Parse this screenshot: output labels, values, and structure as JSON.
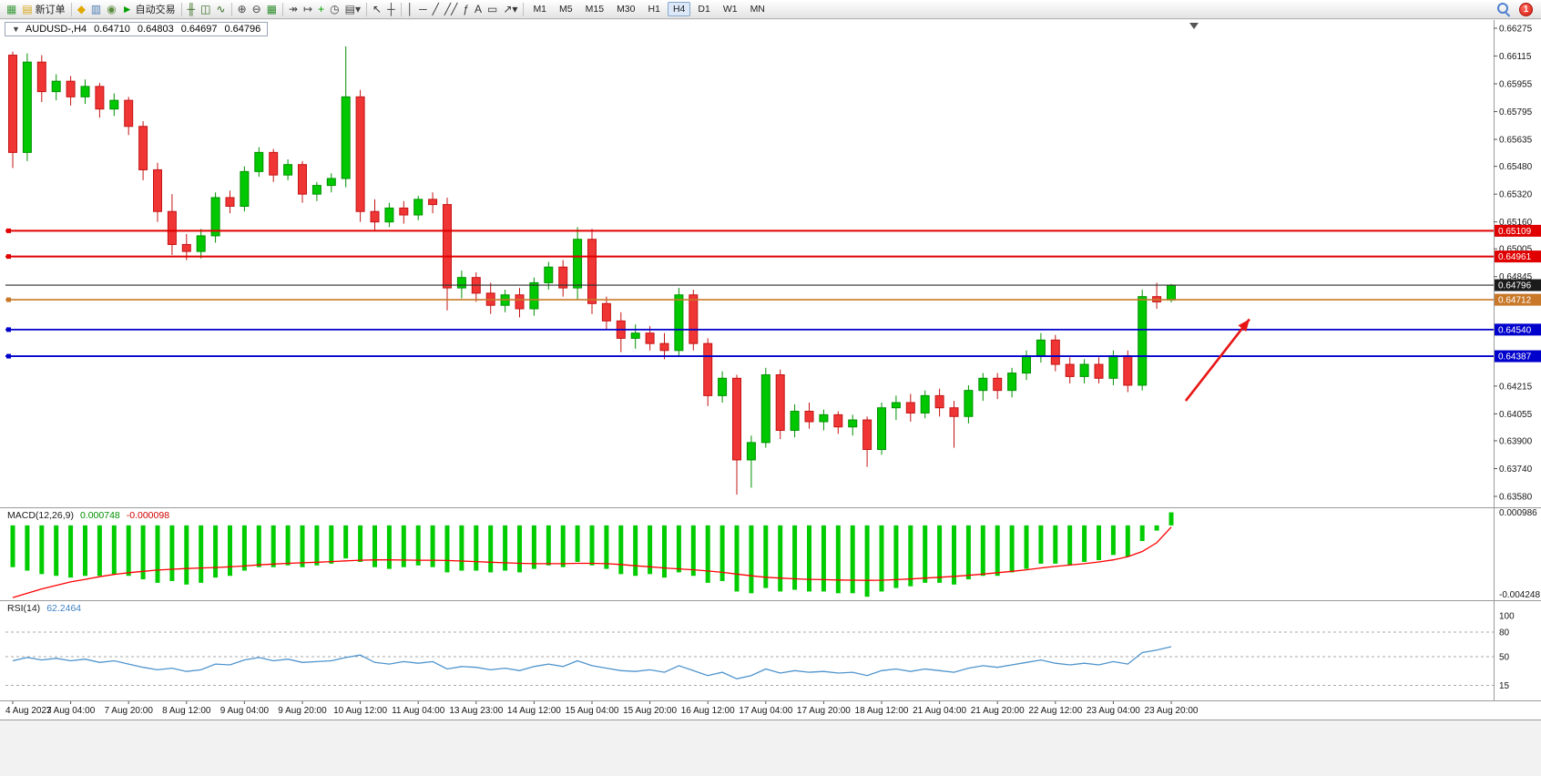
{
  "toolbar": {
    "badge_count": "1",
    "timeframes": [
      "M1",
      "M5",
      "M15",
      "M30",
      "H1",
      "H4",
      "D1",
      "W1",
      "MN"
    ],
    "active_timeframe": "H4",
    "items": [
      {
        "name": "chart-window-icon",
        "glyph": "▦",
        "color": "#3c9b3c"
      },
      {
        "name": "new-order-button",
        "glyph": "▤",
        "color": "#d8a517",
        "label": "新订单"
      },
      {
        "sep": true
      },
      {
        "name": "quotes-icon",
        "glyph": "◆",
        "color": "#e0a800"
      },
      {
        "name": "navigator-icon",
        "glyph": "▥",
        "color": "#4a7ab5"
      },
      {
        "name": "community-icon",
        "glyph": "◉",
        "color": "#5b8c3e"
      },
      {
        "name": "autotrade-button",
        "glyph": "►",
        "color": "#00a000",
        "label": "自动交易"
      },
      {
        "sep": true
      },
      {
        "name": "ohlc-bars-icon",
        "glyph": "╫",
        "color": "#33691e"
      },
      {
        "name": "candlestick-chart-icon",
        "glyph": "◫",
        "color": "#33691e"
      },
      {
        "name": "line-chart-icon",
        "glyph": "∿",
        "color": "#33691e"
      },
      {
        "sep": true
      },
      {
        "name": "zoom-in-icon",
        "glyph": "⊕",
        "color": "#444444"
      },
      {
        "name": "zoom-out-icon",
        "glyph": "⊖",
        "color": "#444444"
      },
      {
        "name": "tile-windows-icon",
        "glyph": "▦",
        "color": "#2f8f2f"
      },
      {
        "sep": true
      },
      {
        "name": "auto-scroll-icon",
        "glyph": "↠",
        "color": "#444444"
      },
      {
        "name": "chart-shift-icon",
        "glyph": "↦",
        "color": "#444444"
      },
      {
        "name": "indicators-icon",
        "glyph": "+",
        "color": "#00a000"
      },
      {
        "name": "periods-icon",
        "glyph": "◷",
        "color": "#444444"
      },
      {
        "name": "templates-icon",
        "glyph": "▤▾",
        "color": "#444444"
      },
      {
        "sep": true
      },
      {
        "name": "cursor-icon",
        "glyph": "↖",
        "color": "#333333"
      },
      {
        "name": "crosshair-icon",
        "glyph": "┼",
        "color": "#333333"
      },
      {
        "sep": true
      },
      {
        "name": "vertical-line-icon",
        "glyph": "│",
        "color": "#333333"
      },
      {
        "name": "horizontal-line-icon",
        "glyph": "─",
        "color": "#333333"
      },
      {
        "name": "trendline-icon",
        "glyph": "╱",
        "color": "#333333"
      },
      {
        "name": "channel-icon",
        "glyph": "╱╱",
        "color": "#333333"
      },
      {
        "name": "fibonacci-icon",
        "glyph": "ƒ",
        "color": "#333333"
      },
      {
        "name": "text-icon",
        "glyph": "A",
        "color": "#333333"
      },
      {
        "name": "label-icon",
        "glyph": "▭",
        "color": "#333333"
      },
      {
        "name": "arrows-icon",
        "glyph": "↗▾",
        "color": "#333333"
      },
      {
        "sep": true
      }
    ]
  },
  "chart": {
    "title": "AUDUSD-,H4",
    "menu_glyph": "▼",
    "ohlc": {
      "open": "0.64710",
      "high": "0.64803",
      "low": "0.64697",
      "close": "0.64796"
    },
    "levels": [
      {
        "name": "resistance-line-1",
        "label": "0.65109",
        "price": 0.65109,
        "color": "#e00000",
        "width": 2
      },
      {
        "name": "resistance-line-2",
        "label": "0.64961",
        "price": 0.64961,
        "color": "#e00000",
        "width": 2
      },
      {
        "name": "orange-level-line",
        "label": "0.64712",
        "price": 0.64712,
        "color": "#c87828",
        "width": 1.6
      },
      {
        "name": "support-line-1",
        "label": "0.64540",
        "price": 0.6454,
        "color": "#0000cc",
        "width": 1.8
      },
      {
        "name": "support-line-2",
        "label": "0.64387",
        "price": 0.64387,
        "color": "#0000cc",
        "width": 1.8
      }
    ],
    "current_price": {
      "label": "0.64796",
      "price": 0.64796,
      "color": "#2b2b2b"
    },
    "annotation_arrow": {
      "from_index": 81,
      "from_price": 0.6413,
      "to_index": 85.4,
      "to_price": 0.646,
      "color": "#e81515"
    }
  },
  "chart_data": {
    "type": "candlestick",
    "symbol": "AUDUSD-",
    "timeframe": "H4",
    "ylim": [
      0.6358,
      0.66275
    ],
    "up_color": "#00c800",
    "up_stroke": "#009100",
    "down_color": "#f03535",
    "down_stroke": "#c41414",
    "price_ticks": [
      "0.66275",
      "0.66115",
      "0.65955",
      "0.65795",
      "0.65635",
      "0.65480",
      "0.65320",
      "0.65160",
      "0.65005",
      "0.64845",
      "0.64690",
      "0.64530",
      "0.64370",
      "0.64215",
      "0.64055",
      "0.63900",
      "0.63740",
      "0.63580"
    ],
    "time_labels": [
      "4 Aug 2023",
      "7 Aug 04:00",
      "7 Aug 20:00",
      "8 Aug 12:00",
      "9 Aug 04:00",
      "9 Aug 20:00",
      "10 Aug 12:00",
      "11 Aug 04:00",
      "13 Aug 23:00",
      "14 Aug 12:00",
      "15 Aug 04:00",
      "15 Aug 20:00",
      "16 Aug 12:00",
      "17 Aug 04:00",
      "17 Aug 20:00",
      "18 Aug 12:00",
      "21 Aug 04:00",
      "21 Aug 20:00",
      "22 Aug 12:00",
      "23 Aug 04:00",
      "23 Aug 20:00"
    ],
    "label_every": 4,
    "candles": [
      [
        0.6612,
        0.6614,
        0.6547,
        0.6556
      ],
      [
        0.6556,
        0.6613,
        0.6551,
        0.6608
      ],
      [
        0.6608,
        0.6612,
        0.6585,
        0.6591
      ],
      [
        0.6591,
        0.6601,
        0.6586,
        0.6597
      ],
      [
        0.6597,
        0.66,
        0.6583,
        0.6588
      ],
      [
        0.6588,
        0.6598,
        0.6584,
        0.6594
      ],
      [
        0.6594,
        0.6596,
        0.6576,
        0.6581
      ],
      [
        0.6581,
        0.659,
        0.6577,
        0.6586
      ],
      [
        0.6586,
        0.6588,
        0.6566,
        0.6571
      ],
      [
        0.6571,
        0.6574,
        0.654,
        0.6546
      ],
      [
        0.6546,
        0.655,
        0.6516,
        0.6522
      ],
      [
        0.6522,
        0.6532,
        0.6497,
        0.6503
      ],
      [
        0.6503,
        0.6509,
        0.6494,
        0.6499
      ],
      [
        0.6499,
        0.6512,
        0.6495,
        0.6508
      ],
      [
        0.6508,
        0.6533,
        0.6504,
        0.653
      ],
      [
        0.653,
        0.6534,
        0.6521,
        0.6525
      ],
      [
        0.6525,
        0.6548,
        0.6522,
        0.6545
      ],
      [
        0.6545,
        0.6559,
        0.6542,
        0.6556
      ],
      [
        0.6556,
        0.6558,
        0.6539,
        0.6543
      ],
      [
        0.6543,
        0.6552,
        0.654,
        0.6549
      ],
      [
        0.6549,
        0.6551,
        0.6527,
        0.6532
      ],
      [
        0.6532,
        0.6539,
        0.6528,
        0.6537
      ],
      [
        0.6537,
        0.6544,
        0.6533,
        0.6541
      ],
      [
        0.6541,
        0.6617,
        0.6536,
        0.6588
      ],
      [
        0.6588,
        0.6592,
        0.6516,
        0.6522
      ],
      [
        0.6522,
        0.6529,
        0.6511,
        0.6516
      ],
      [
        0.6516,
        0.6527,
        0.6513,
        0.6524
      ],
      [
        0.6524,
        0.6528,
        0.6515,
        0.652
      ],
      [
        0.652,
        0.6531,
        0.6517,
        0.6529
      ],
      [
        0.6529,
        0.6533,
        0.6521,
        0.6526
      ],
      [
        0.6526,
        0.653,
        0.6465,
        0.6478
      ],
      [
        0.6478,
        0.6488,
        0.6472,
        0.6484
      ],
      [
        0.6484,
        0.6487,
        0.647,
        0.6475
      ],
      [
        0.6475,
        0.6481,
        0.6463,
        0.6468
      ],
      [
        0.6468,
        0.6477,
        0.6464,
        0.6474
      ],
      [
        0.6474,
        0.6478,
        0.6461,
        0.6466
      ],
      [
        0.6466,
        0.6484,
        0.6462,
        0.6481
      ],
      [
        0.6481,
        0.6493,
        0.6477,
        0.649
      ],
      [
        0.649,
        0.6494,
        0.6473,
        0.6478
      ],
      [
        0.6478,
        0.6513,
        0.6471,
        0.6506
      ],
      [
        0.6506,
        0.6512,
        0.6463,
        0.6469
      ],
      [
        0.6469,
        0.6473,
        0.6454,
        0.6459
      ],
      [
        0.6459,
        0.6464,
        0.6441,
        0.6449
      ],
      [
        0.6449,
        0.6457,
        0.6443,
        0.6452
      ],
      [
        0.6452,
        0.6456,
        0.6442,
        0.6446
      ],
      [
        0.6446,
        0.6452,
        0.6437,
        0.6442
      ],
      [
        0.6442,
        0.6478,
        0.6439,
        0.6474
      ],
      [
        0.6474,
        0.6477,
        0.6442,
        0.6446
      ],
      [
        0.6446,
        0.6449,
        0.641,
        0.6416
      ],
      [
        0.6416,
        0.643,
        0.6412,
        0.6426
      ],
      [
        0.6426,
        0.6428,
        0.6359,
        0.6379
      ],
      [
        0.6379,
        0.6393,
        0.6363,
        0.6389
      ],
      [
        0.6389,
        0.6432,
        0.6386,
        0.6428
      ],
      [
        0.6428,
        0.6431,
        0.6391,
        0.6396
      ],
      [
        0.6396,
        0.6411,
        0.6392,
        0.6407
      ],
      [
        0.6407,
        0.6412,
        0.6397,
        0.6401
      ],
      [
        0.6401,
        0.6408,
        0.6396,
        0.6405
      ],
      [
        0.6405,
        0.6407,
        0.6394,
        0.6398
      ],
      [
        0.6398,
        0.6405,
        0.6393,
        0.6402
      ],
      [
        0.6402,
        0.6404,
        0.6375,
        0.6385
      ],
      [
        0.6385,
        0.6412,
        0.6382,
        0.6409
      ],
      [
        0.6409,
        0.6416,
        0.6402,
        0.6412
      ],
      [
        0.6412,
        0.6417,
        0.6401,
        0.6406
      ],
      [
        0.6406,
        0.6419,
        0.6403,
        0.6416
      ],
      [
        0.6416,
        0.642,
        0.6404,
        0.6409
      ],
      [
        0.6409,
        0.6413,
        0.6386,
        0.6404
      ],
      [
        0.6404,
        0.6422,
        0.64,
        0.6419
      ],
      [
        0.6419,
        0.6429,
        0.6413,
        0.6426
      ],
      [
        0.6426,
        0.6429,
        0.6414,
        0.6419
      ],
      [
        0.6419,
        0.6432,
        0.6415,
        0.6429
      ],
      [
        0.6429,
        0.6442,
        0.6425,
        0.6439
      ],
      [
        0.6439,
        0.6452,
        0.6435,
        0.6448
      ],
      [
        0.6448,
        0.6451,
        0.643,
        0.6434
      ],
      [
        0.6434,
        0.6438,
        0.6423,
        0.6427
      ],
      [
        0.6427,
        0.6437,
        0.6423,
        0.6434
      ],
      [
        0.6434,
        0.6438,
        0.6423,
        0.6426
      ],
      [
        0.6426,
        0.6442,
        0.6422,
        0.6439
      ],
      [
        0.6439,
        0.6442,
        0.6418,
        0.6422
      ],
      [
        0.6422,
        0.6477,
        0.6419,
        0.6473
      ],
      [
        0.6473,
        0.6481,
        0.6466,
        0.647
      ],
      [
        0.6471,
        0.64803,
        0.64697,
        0.64796
      ]
    ],
    "indicators": {
      "macd": {
        "name": "MACD(12,26,9)",
        "value_main": "0.000748",
        "value_signal": "-0.000098",
        "ylim": [
          -0.004248,
          0.000986
        ],
        "axis_labels": [
          "0.000986",
          "-0.004248"
        ],
        "hist_color": "#00cc00",
        "signal_color": "#ff0000",
        "histogram": [
          -0.0024,
          -0.0026,
          -0.0028,
          -0.0029,
          -0.003,
          -0.0029,
          -0.0029,
          -0.0028,
          -0.0029,
          -0.0031,
          -0.0033,
          -0.0032,
          -0.0034,
          -0.0033,
          -0.003,
          -0.0029,
          -0.0026,
          -0.0024,
          -0.0024,
          -0.0023,
          -0.0024,
          -0.0023,
          -0.0022,
          -0.0019,
          -0.0021,
          -0.0024,
          -0.0025,
          -0.0024,
          -0.0023,
          -0.0024,
          -0.0027,
          -0.0026,
          -0.0026,
          -0.0027,
          -0.0026,
          -0.0027,
          -0.0025,
          -0.0023,
          -0.0024,
          -0.0021,
          -0.0023,
          -0.0025,
          -0.0028,
          -0.0029,
          -0.0028,
          -0.003,
          -0.0027,
          -0.0029,
          -0.0033,
          -0.0032,
          -0.0038,
          -0.0039,
          -0.0036,
          -0.0038,
          -0.0037,
          -0.0038,
          -0.0038,
          -0.0039,
          -0.0039,
          -0.0041,
          -0.0038,
          -0.0036,
          -0.0035,
          -0.0033,
          -0.0033,
          -0.0034,
          -0.0031,
          -0.0029,
          -0.0029,
          -0.0027,
          -0.0025,
          -0.0022,
          -0.0022,
          -0.0023,
          -0.0021,
          -0.002,
          -0.0017,
          -0.0018,
          -0.0009,
          -0.0003,
          0.000748
        ],
        "signal": [
          -0.00415,
          -0.0039,
          -0.00365,
          -0.00345,
          -0.00325,
          -0.0031,
          -0.00295,
          -0.00282,
          -0.00272,
          -0.00264,
          -0.00257,
          -0.00252,
          -0.00248,
          -0.00245,
          -0.00242,
          -0.00238,
          -0.00233,
          -0.00227,
          -0.00222,
          -0.00218,
          -0.00215,
          -0.00212,
          -0.00208,
          -0.00204,
          -0.002,
          -0.00198,
          -0.00198,
          -0.00199,
          -0.002,
          -0.002,
          -0.00202,
          -0.00205,
          -0.00208,
          -0.00212,
          -0.00215,
          -0.00218,
          -0.0022,
          -0.0022,
          -0.0022,
          -0.00218,
          -0.00218,
          -0.0022,
          -0.00225,
          -0.00232,
          -0.00238,
          -0.00245,
          -0.0025,
          -0.00255,
          -0.00262,
          -0.0027,
          -0.0028,
          -0.0029,
          -0.00298,
          -0.00303,
          -0.00307,
          -0.0031,
          -0.00312,
          -0.00314,
          -0.00315,
          -0.00316,
          -0.00315,
          -0.00312,
          -0.00308,
          -0.00303,
          -0.00298,
          -0.00293,
          -0.00287,
          -0.0028,
          -0.00272,
          -0.00264,
          -0.00255,
          -0.00245,
          -0.00236,
          -0.00228,
          -0.0022,
          -0.0021,
          -0.00198,
          -0.0018,
          -0.0015,
          -0.001,
          -9.8e-05
        ]
      },
      "rsi": {
        "name": "RSI(14)",
        "value": "62.2464",
        "levels": [
          15,
          50,
          80
        ],
        "axis_labels": [
          "100",
          "80",
          "50",
          "15"
        ],
        "color": "#4f94cd",
        "series": [
          45,
          49,
          46,
          48,
          45,
          47,
          43,
          45,
          41,
          37,
          34,
          36,
          32,
          34,
          41,
          40,
          46,
          49,
          45,
          47,
          43,
          44,
          45,
          49,
          52,
          43,
          41,
          44,
          42,
          44,
          35,
          38,
          37,
          34,
          36,
          33,
          38,
          41,
          38,
          45,
          39,
          36,
          33,
          32,
          34,
          31,
          39,
          33,
          27,
          31,
          23,
          27,
          35,
          30,
          33,
          31,
          32,
          30,
          31,
          27,
          33,
          35,
          32,
          35,
          33,
          31,
          36,
          39,
          37,
          40,
          43,
          46,
          42,
          40,
          42,
          40,
          44,
          41,
          55,
          58,
          62.2464
        ]
      }
    }
  }
}
